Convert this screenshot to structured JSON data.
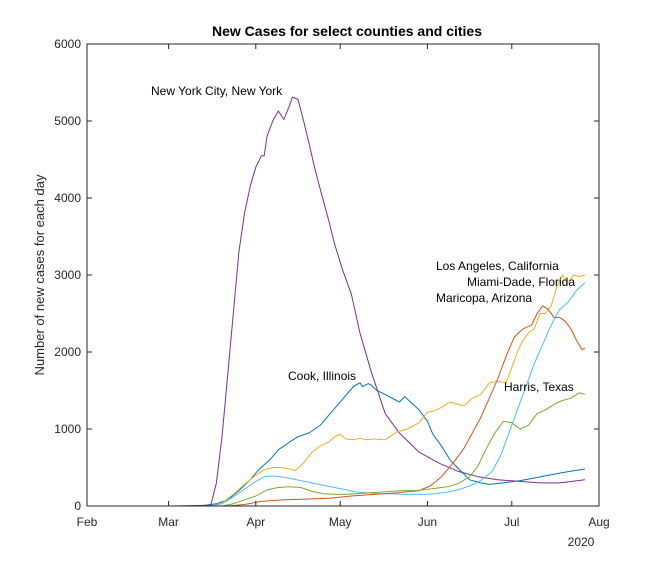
{
  "chart_data": {
    "type": "line",
    "title": "New Cases for select counties and cities",
    "xlabel": "",
    "ylabel": "Number of new cases for each day",
    "x_year_label": "2020",
    "x_ticks": [
      "Feb",
      "Mar",
      "Apr",
      "May",
      "Jun",
      "Jul",
      "Aug"
    ],
    "x_tick_days": [
      0,
      29,
      60,
      90,
      121,
      151,
      182
    ],
    "x_unit": "days since Feb 1 2020",
    "xlim": [
      0,
      182
    ],
    "y_ticks": [
      "0",
      "1000",
      "2000",
      "3000",
      "4000",
      "5000",
      "6000"
    ],
    "ylim": [
      0,
      6000
    ],
    "grid": false,
    "legend": "none (inline annotations)",
    "series": [
      {
        "name": "New York City, New York",
        "color": "#7E2F8E",
        "x": [
          8,
          30,
          44,
          46,
          48,
          50,
          52,
          54,
          56,
          58,
          60,
          62,
          63,
          64,
          66,
          68,
          70,
          72,
          73,
          75,
          77,
          79,
          81,
          83,
          86,
          88,
          91,
          94,
          97,
          101,
          106,
          111,
          118,
          125,
          132,
          139,
          146,
          154,
          161,
          168,
          177
        ],
        "values": [
          0,
          0,
          10,
          300,
          900,
          1700,
          2500,
          3300,
          3800,
          4150,
          4400,
          4550,
          4550,
          4800,
          5000,
          5130,
          5020,
          5200,
          5310,
          5280,
          5000,
          4700,
          4380,
          4100,
          3700,
          3400,
          3050,
          2750,
          2250,
          1750,
          1200,
          950,
          700,
          560,
          450,
          380,
          340,
          320,
          300,
          300,
          340
        ]
      },
      {
        "name": "Cook, Illinois",
        "color": "#0072BD",
        "x": [
          8,
          40,
          46,
          50,
          54,
          58,
          61,
          65,
          68,
          72,
          75,
          79,
          83,
          86,
          90,
          93,
          95,
          97,
          98,
          100,
          101,
          103,
          106,
          109,
          111,
          113,
          115,
          118,
          121,
          123,
          126,
          129,
          133,
          136,
          140,
          143,
          148,
          154,
          160,
          164,
          170,
          177
        ],
        "values": [
          0,
          0,
          30,
          80,
          200,
          340,
          470,
          600,
          730,
          830,
          900,
          950,
          1050,
          1180,
          1350,
          1480,
          1560,
          1600,
          1550,
          1590,
          1570,
          1500,
          1450,
          1390,
          1350,
          1420,
          1350,
          1250,
          1100,
          930,
          780,
          600,
          450,
          340,
          300,
          280,
          300,
          330,
          370,
          400,
          440,
          480
        ]
      },
      {
        "name": "Los Angeles, California",
        "color": "#EDB120",
        "x": [
          8,
          44,
          48,
          52,
          56,
          60,
          63,
          66,
          69,
          72,
          74,
          77,
          80,
          83,
          86,
          88,
          90,
          92,
          95,
          97,
          99,
          102,
          106,
          110,
          114,
          118,
          121,
          123,
          126,
          129,
          132,
          134,
          137,
          140,
          143,
          146,
          149,
          151,
          153,
          155,
          157,
          159,
          161,
          163,
          165,
          167,
          169,
          171,
          173,
          175,
          177
        ],
        "values": [
          0,
          0,
          40,
          150,
          280,
          400,
          470,
          500,
          500,
          480,
          460,
          560,
          700,
          780,
          830,
          900,
          930,
          870,
          860,
          880,
          860,
          870,
          860,
          960,
          1000,
          1080,
          1220,
          1230,
          1280,
          1350,
          1320,
          1300,
          1400,
          1450,
          1600,
          1620,
          1600,
          1800,
          2000,
          2150,
          2250,
          2300,
          2500,
          2500,
          2600,
          2850,
          3000,
          2900,
          3000,
          2980,
          3000
        ]
      },
      {
        "name": "Miami-Dade, Florida",
        "color": "#4DBEEE",
        "x": [
          8,
          44,
          48,
          52,
          56,
          60,
          63,
          66,
          69,
          72,
          76,
          80,
          84,
          88,
          92,
          96,
          100,
          104,
          108,
          112,
          116,
          120,
          124,
          128,
          132,
          136,
          140,
          144,
          147,
          150,
          153,
          156,
          159,
          162,
          165,
          168,
          171,
          174,
          177
        ],
        "values": [
          0,
          0,
          30,
          120,
          220,
          320,
          380,
          390,
          380,
          360,
          330,
          300,
          270,
          240,
          210,
          180,
          170,
          160,
          160,
          150,
          150,
          150,
          160,
          180,
          210,
          260,
          330,
          450,
          650,
          950,
          1250,
          1550,
          1850,
          2100,
          2350,
          2550,
          2650,
          2800,
          2900
        ]
      },
      {
        "name": "Maricopa, Arizona",
        "color": "#D95319",
        "x": [
          8,
          50,
          56,
          62,
          70,
          78,
          86,
          94,
          102,
          110,
          118,
          122,
          126,
          130,
          134,
          137,
          140,
          143,
          146,
          149,
          152,
          155,
          158,
          160,
          162,
          164,
          166,
          168,
          170,
          172,
          174,
          176,
          177
        ],
        "values": [
          0,
          0,
          20,
          60,
          80,
          90,
          100,
          130,
          150,
          170,
          200,
          260,
          380,
          550,
          750,
          950,
          1150,
          1400,
          1650,
          1950,
          2200,
          2300,
          2350,
          2500,
          2600,
          2550,
          2450,
          2450,
          2400,
          2300,
          2150,
          2030,
          2050
        ]
      },
      {
        "name": "Harris, Texas",
        "color": "#77AC30",
        "x": [
          8,
          48,
          52,
          56,
          60,
          64,
          68,
          72,
          76,
          80,
          84,
          88,
          92,
          96,
          100,
          104,
          108,
          112,
          116,
          120,
          124,
          128,
          132,
          136,
          139,
          142,
          145,
          148,
          151,
          154,
          157,
          160,
          163,
          166,
          169,
          172,
          175,
          177
        ],
        "values": [
          0,
          0,
          30,
          80,
          130,
          210,
          240,
          250,
          240,
          190,
          160,
          150,
          150,
          160,
          170,
          180,
          190,
          200,
          200,
          210,
          230,
          250,
          290,
          380,
          520,
          750,
          950,
          1100,
          1080,
          1000,
          1050,
          1200,
          1250,
          1320,
          1370,
          1400,
          1470,
          1450
        ]
      }
    ],
    "annotations": [
      {
        "text": "New York City, New York",
        "series": "New York City, New York"
      },
      {
        "text": "Cook, Illinois",
        "series": "Cook, Illinois"
      },
      {
        "text": "Los Angeles, California",
        "series": "Los Angeles, California"
      },
      {
        "text": "Miami-Dade, Florida",
        "series": "Miami-Dade, Florida"
      },
      {
        "text": "Maricopa, Arizona",
        "series": "Maricopa, Arizona"
      },
      {
        "text": "Harris, Texas",
        "series": "Harris, Texas"
      }
    ]
  }
}
